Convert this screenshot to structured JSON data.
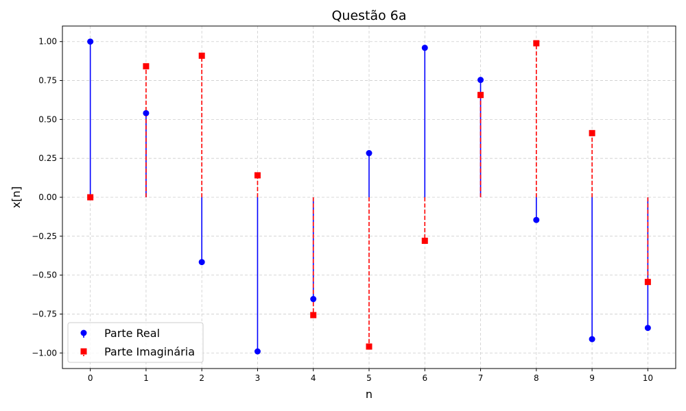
{
  "chart_data": {
    "type": "stem",
    "title": "Questão 6a",
    "xlabel": "n",
    "ylabel": "x[n]",
    "x": [
      0,
      1,
      2,
      3,
      4,
      5,
      6,
      7,
      8,
      9,
      10
    ],
    "xlim": [
      -0.5,
      10.5
    ],
    "ylim": [
      -1.1,
      1.1
    ],
    "xticks": [
      "0",
      "1",
      "2",
      "3",
      "4",
      "5",
      "6",
      "7",
      "8",
      "9",
      "10"
    ],
    "yticks": [
      {
        "value": 1.0,
        "label": "1.00"
      },
      {
        "value": 0.75,
        "label": "0.75"
      },
      {
        "value": 0.5,
        "label": "0.50"
      },
      {
        "value": 0.25,
        "label": "0.25"
      },
      {
        "value": 0.0,
        "label": "0.00"
      },
      {
        "value": -0.25,
        "label": "−0.25"
      },
      {
        "value": -0.5,
        "label": "−0.50"
      },
      {
        "value": -0.75,
        "label": "−0.75"
      },
      {
        "value": -1.0,
        "label": "−1.00"
      }
    ],
    "grid": true,
    "legend_position": "lower-left",
    "series": [
      {
        "name": "Parte Real",
        "color": "#0000ff",
        "marker": "circle",
        "line_style": "solid",
        "values": [
          1.0,
          0.5403,
          -0.4161,
          -0.99,
          -0.6536,
          0.2837,
          0.9602,
          0.7539,
          -0.1455,
          -0.9111,
          -0.8391
        ]
      },
      {
        "name": "Parte Imaginária",
        "color": "#ff0000",
        "marker": "square",
        "line_style": "dashed",
        "values": [
          0.0,
          0.8415,
          0.9093,
          0.1411,
          -0.7568,
          -0.9589,
          -0.2794,
          0.657,
          0.9894,
          0.4121,
          -0.544
        ]
      }
    ]
  }
}
